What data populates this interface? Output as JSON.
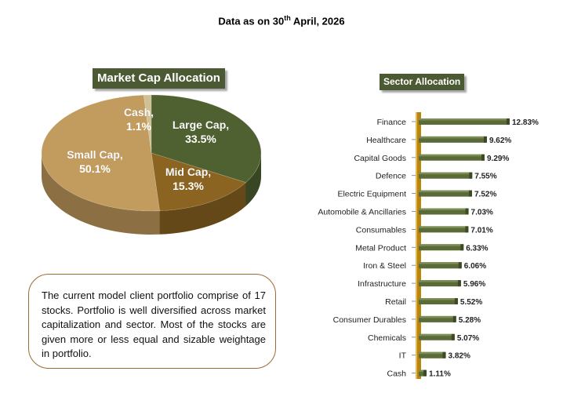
{
  "header": {
    "text_pre": "Data as on 30",
    "sup": "th",
    "text_post": " April, 2026"
  },
  "market_cap_title": "Market Cap Allocation",
  "sector_title": "Sector Allocation",
  "note": "The current model client portfolio comprise of 17 stocks. Portfolio is well diversified across market capitalization and sector. Most of the stocks are given more or less equal and sizable weightage in portfolio.",
  "colors": {
    "large_cap": "#4f6131",
    "mid_cap": "#8c6421",
    "small_cap": "#c29b5e",
    "cash": "#cfc195",
    "bar": "#5a6b38",
    "axis": "#b8860b"
  },
  "chart_data": [
    {
      "type": "pie",
      "title": "Market Cap Allocation",
      "slices": [
        {
          "label": "Large Cap,",
          "pct_label": "33.5%",
          "value": 33.5
        },
        {
          "label": "Mid Cap,",
          "pct_label": "15.3%",
          "value": 15.3
        },
        {
          "label": "Small Cap,",
          "pct_label": "50.1%",
          "value": 50.1
        },
        {
          "label": "Cash,",
          "pct_label": "1.1%",
          "value": 1.1
        }
      ]
    },
    {
      "type": "bar",
      "orientation": "horizontal",
      "title": "Sector Allocation",
      "categories": [
        "Finance",
        "Healthcare",
        "Capital Goods",
        "Defence",
        "Electric Equipment",
        "Automobile & Ancillaries",
        "Consumables",
        "Metal Product",
        "Iron & Steel",
        "Infrastructure",
        "Retail",
        "Consumer Durables",
        "Chemicals",
        "IT",
        "Cash"
      ],
      "values": [
        12.83,
        9.62,
        9.29,
        7.55,
        7.52,
        7.03,
        7.01,
        6.33,
        6.06,
        5.96,
        5.52,
        5.28,
        5.07,
        3.82,
        1.11
      ],
      "value_labels": [
        "12.83%",
        "9.62%",
        "9.29%",
        "7.55%",
        "7.52%",
        "7.03%",
        "7.01%",
        "6.33%",
        "6.06%",
        "5.96%",
        "5.52%",
        "5.28%",
        "5.07%",
        "3.82%",
        "1.11%"
      ]
    }
  ]
}
